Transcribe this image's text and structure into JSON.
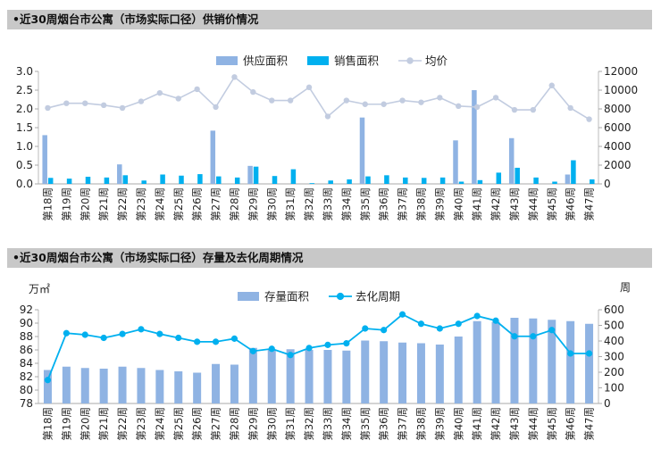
{
  "chart_data": [
    {
      "type": "bar",
      "title": "•近30周烟台市公寓（市场实际口径）供销价情况",
      "categories": [
        "第18周",
        "第19周",
        "第20周",
        "第21周",
        "第22周",
        "第23周",
        "第24周",
        "第25周",
        "第26周",
        "第27周",
        "第28周",
        "第29周",
        "第30周",
        "第31周",
        "第32周",
        "第33周",
        "第34周",
        "第35周",
        "第36周",
        "第37周",
        "第38周",
        "第39周",
        "第40周",
        "第41周",
        "第42周",
        "第43周",
        "第44周",
        "第45周",
        "第46周",
        "第47周"
      ],
      "series": [
        {
          "name": "供应面积",
          "axis": "left",
          "type": "bar",
          "color": "#8fb3e3",
          "values": [
            1.3,
            0,
            0,
            0,
            0.52,
            0,
            0,
            0,
            0,
            1.42,
            0,
            0.48,
            0,
            0,
            0,
            0,
            0,
            1.77,
            0,
            0,
            0,
            0,
            1.16,
            2.5,
            0,
            1.22,
            0,
            0,
            0.25,
            0
          ]
        },
        {
          "name": "销售面积",
          "axis": "left",
          "type": "bar",
          "color": "#00b0ef",
          "values": [
            0.16,
            0.14,
            0.19,
            0.17,
            0.23,
            0.09,
            0.25,
            0.22,
            0.26,
            0.2,
            0.17,
            0.46,
            0.21,
            0.39,
            0.02,
            0.09,
            0.12,
            0.2,
            0.23,
            0.17,
            0.16,
            0.17,
            0.06,
            0.1,
            0.3,
            0.43,
            0.17,
            0.06,
            0.63,
            0.12
          ]
        },
        {
          "name": "均价",
          "axis": "right",
          "type": "line",
          "color": "#c2cce0",
          "values": [
            8100,
            8600,
            8600,
            8400,
            8100,
            8800,
            9700,
            9100,
            10100,
            8200,
            11400,
            9800,
            8900,
            8900,
            10300,
            7200,
            8900,
            8500,
            8500,
            8900,
            8700,
            9200,
            8300,
            8200,
            9200,
            7900,
            7900,
            10500,
            8100,
            6900
          ]
        }
      ],
      "y_left": {
        "min": 0,
        "max": 3.0,
        "ticks": [
          "0.0",
          "0.5",
          "1.0",
          "1.5",
          "2.0",
          "2.5",
          "3.0"
        ]
      },
      "y_right": {
        "min": 0,
        "max": 12000,
        "ticks": [
          "0",
          "2000",
          "4000",
          "6000",
          "8000",
          "10000",
          "12000"
        ]
      },
      "legend": "top-center"
    },
    {
      "type": "bar",
      "title": "•近30周烟台市公寓（市场实际口径）存量及去化周期情况",
      "categories": [
        "第18周",
        "第19周",
        "第20周",
        "第21周",
        "第22周",
        "第23周",
        "第24周",
        "第25周",
        "第26周",
        "第27周",
        "第28周",
        "第29周",
        "第30周",
        "第31周",
        "第32周",
        "第33周",
        "第34周",
        "第35周",
        "第36周",
        "第37周",
        "第38周",
        "第39周",
        "第40周",
        "第41周",
        "第42周",
        "第43周",
        "第44周",
        "第45周",
        "第46周",
        "第47周"
      ],
      "ylabel_left": "万㎡",
      "ylabel_right": "周",
      "series": [
        {
          "name": "存量面积",
          "axis": "left",
          "type": "bar",
          "color": "#8fb3e3",
          "values": [
            83.0,
            83.5,
            83.3,
            83.2,
            83.5,
            83.3,
            83.0,
            82.8,
            82.6,
            83.9,
            83.8,
            86.3,
            86.0,
            86.1,
            86.0,
            86.0,
            85.9,
            87.4,
            87.3,
            87.1,
            87.0,
            86.8,
            88.0,
            90.3,
            90.2,
            90.8,
            90.7,
            90.5,
            90.3,
            89.9
          ]
        },
        {
          "name": "去化周期",
          "axis": "right",
          "type": "line",
          "color": "#00b0ef",
          "values": [
            150,
            450,
            440,
            420,
            445,
            475,
            445,
            420,
            395,
            395,
            415,
            335,
            350,
            310,
            355,
            375,
            385,
            480,
            470,
            570,
            510,
            480,
            510,
            560,
            530,
            430,
            430,
            470,
            320,
            320
          ]
        }
      ],
      "y_left": {
        "min": 78,
        "max": 92,
        "ticks": [
          "78",
          "80",
          "82",
          "84",
          "86",
          "88",
          "90",
          "92"
        ]
      },
      "y_right": {
        "min": 0,
        "max": 600,
        "ticks": [
          "0",
          "100",
          "200",
          "300",
          "400",
          "500",
          "600"
        ]
      },
      "legend": "top-center"
    }
  ]
}
